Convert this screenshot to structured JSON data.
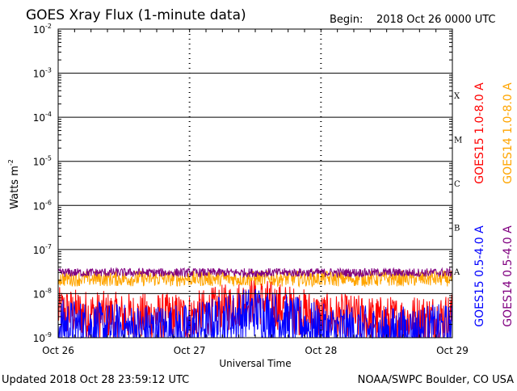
{
  "header": {
    "title": "GOES Xray Flux (1-minute data)",
    "begin_label": "Begin:",
    "begin_value": "2018 Oct 26 0000 UTC"
  },
  "footer": {
    "updated": "Updated 2018 Oct 28 23:59:12 UTC",
    "credit": "NOAA/SWPC Boulder, CO USA"
  },
  "chart_data": {
    "type": "line",
    "title": "GOES Xray Flux (1-minute data)",
    "xlabel": "Universal Time",
    "ylabel": "Watts m",
    "ylabel_sup": "-2",
    "yscale": "log",
    "ylim": [
      1e-09,
      0.01
    ],
    "y_ticks": [
      {
        "base": "10",
        "exp": "-9"
      },
      {
        "base": "10",
        "exp": "-8"
      },
      {
        "base": "10",
        "exp": "-7"
      },
      {
        "base": "10",
        "exp": "-6"
      },
      {
        "base": "10",
        "exp": "-5"
      },
      {
        "base": "10",
        "exp": "-4"
      },
      {
        "base": "10",
        "exp": "-3"
      },
      {
        "base": "10",
        "exp": "-2"
      }
    ],
    "x_ticks": [
      "Oct 26",
      "Oct 27",
      "Oct 28",
      "Oct 29"
    ],
    "xlim": [
      "2018-10-26",
      "2018-10-29"
    ],
    "flare_classes": [
      {
        "label": "A",
        "flux": 1e-08
      },
      {
        "label": "B",
        "flux": 1e-07
      },
      {
        "label": "C",
        "flux": 1e-06
      },
      {
        "label": "M",
        "flux": 1e-05
      },
      {
        "label": "X",
        "flux": 0.0001
      }
    ],
    "grid": true,
    "legend_placement": "right",
    "series": [
      {
        "name": "GOES15 1.0-8.0 A",
        "color": "#ff0000",
        "typical_flux": 3e-09,
        "x": [
          "2018-10-26",
          "2018-10-26T12:00",
          "2018-10-27",
          "2018-10-27T12:00",
          "2018-10-28",
          "2018-10-28T12:00",
          "2018-10-29"
        ],
        "y": [
          4e-09,
          3e-09,
          3e-09,
          7e-09,
          3e-09,
          2.5e-09,
          3e-09
        ]
      },
      {
        "name": "GOES14 1.0-8.0 A",
        "color": "#ffa500",
        "typical_flux": 2.2e-08,
        "x": [
          "2018-10-26",
          "2018-10-29"
        ],
        "y": [
          2.2e-08,
          2.2e-08
        ]
      },
      {
        "name": "GOES15 0.5-4.0 A",
        "color": "#0000ff",
        "typical_flux": 1.5e-09,
        "x": [
          "2018-10-26",
          "2018-10-26T12:00",
          "2018-10-27",
          "2018-10-27T12:00",
          "2018-10-28",
          "2018-10-28T12:00",
          "2018-10-29"
        ],
        "y": [
          2e-09,
          1.5e-09,
          1.5e-09,
          4e-09,
          1.5e-09,
          1.3e-09,
          1.5e-09
        ]
      },
      {
        "name": "GOES14 0.5-4.0 A",
        "color": "#800080",
        "typical_flux": 3e-08,
        "x": [
          "2018-10-26",
          "2018-10-29"
        ],
        "y": [
          3e-08,
          3e-08
        ]
      }
    ]
  }
}
